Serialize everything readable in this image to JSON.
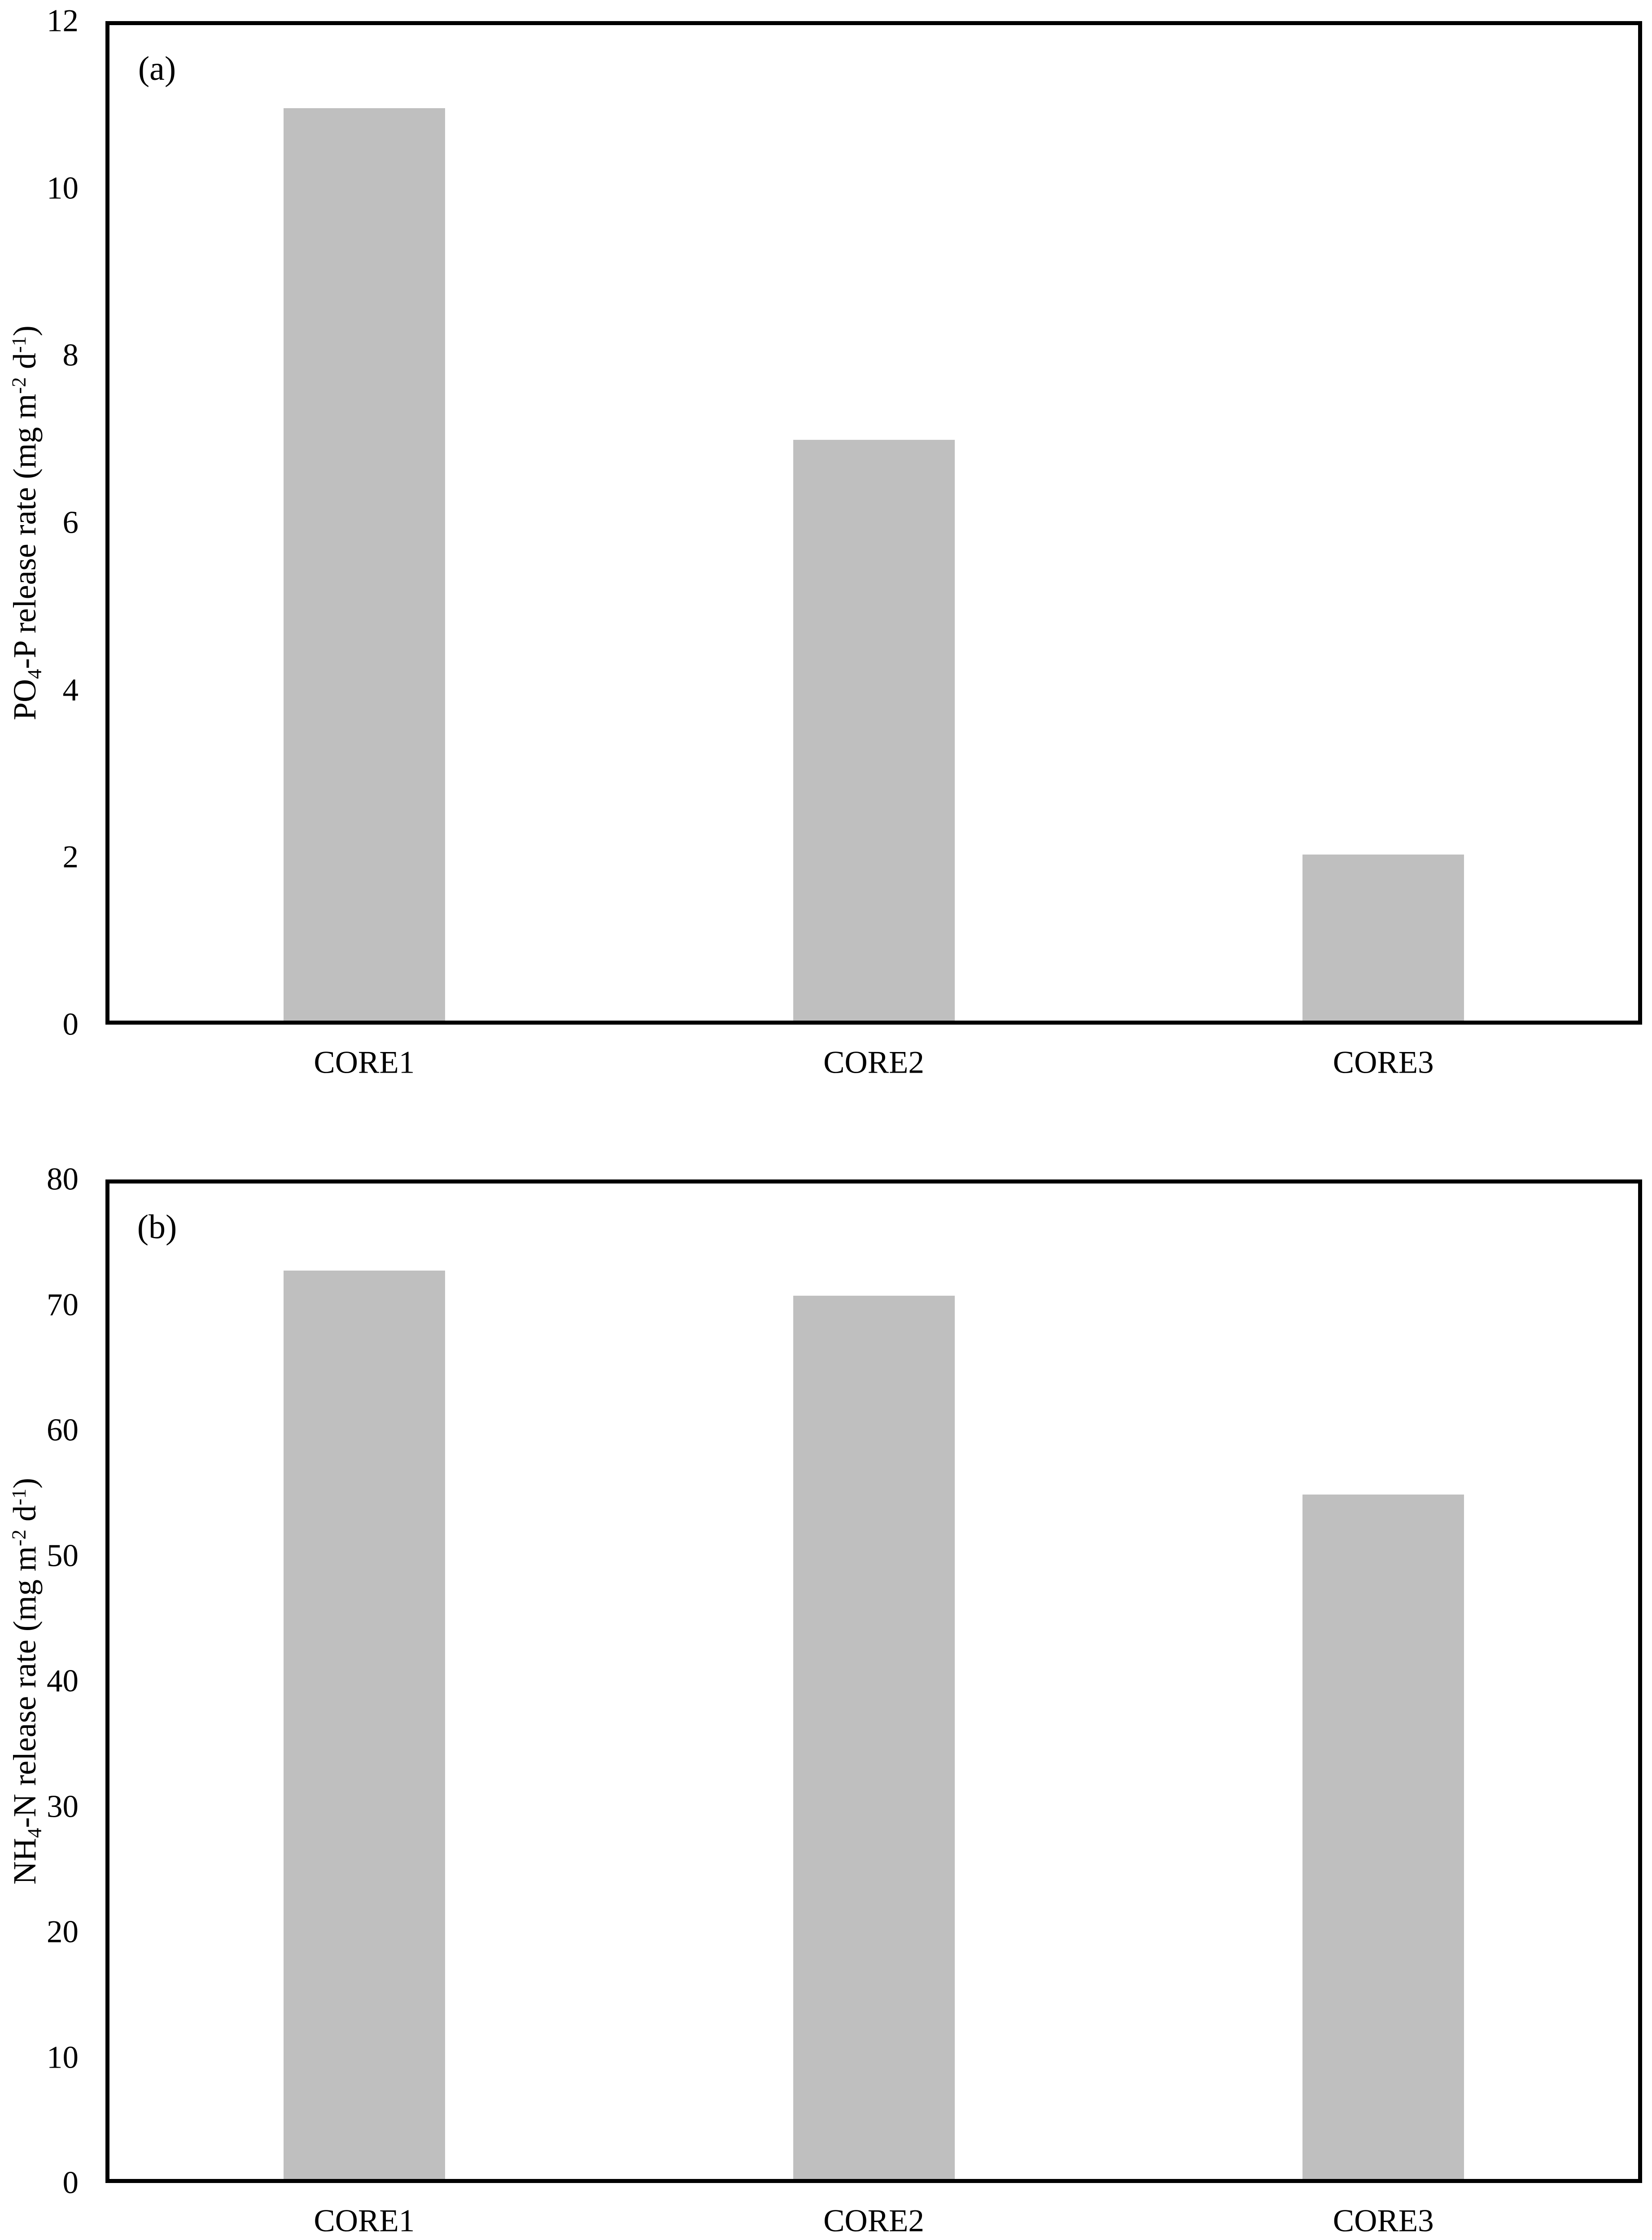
{
  "figure": {
    "background": "#ffffff",
    "axis_color": "#000000",
    "bar_color": "#bfbfbf",
    "text_color": "#000000"
  },
  "chart_data": [
    {
      "type": "bar",
      "panel_label": "(a)",
      "categories": [
        "CORE1",
        "CORE2",
        "CORE3"
      ],
      "values": [
        11,
        7,
        2
      ],
      "title": "",
      "xlabel": "",
      "ylabel": "PO4-P release rate (mg m-2 d-1)",
      "ylabel_rich": [
        {
          "kind": "text",
          "text": "PO"
        },
        {
          "kind": "sub",
          "text": "4"
        },
        {
          "kind": "text",
          "text": "-P release rate (mg m"
        },
        {
          "kind": "sup",
          "text": "-2"
        },
        {
          "kind": "text",
          "text": " d"
        },
        {
          "kind": "sup",
          "text": "-1"
        },
        {
          "kind": "text",
          "text": ")"
        }
      ],
      "ylim": [
        0,
        12
      ],
      "yticks": [
        0,
        2,
        4,
        6,
        8,
        10,
        12
      ],
      "grid": false,
      "legend": null,
      "bar_fill": "#bfbfbf"
    },
    {
      "type": "bar",
      "panel_label": "(b)",
      "categories": [
        "CORE1",
        "CORE2",
        "CORE3"
      ],
      "values": [
        73,
        71,
        55
      ],
      "title": "",
      "xlabel": "",
      "ylabel": "NH4-N release rate (mg m-2 d-1)",
      "ylabel_rich": [
        {
          "kind": "text",
          "text": "NH"
        },
        {
          "kind": "sub",
          "text": "4"
        },
        {
          "kind": "text",
          "text": "-N release rate (mg m"
        },
        {
          "kind": "sup",
          "text": "-2"
        },
        {
          "kind": "text",
          "text": " d"
        },
        {
          "kind": "sup",
          "text": "-1"
        },
        {
          "kind": "text",
          "text": ")"
        }
      ],
      "ylim": [
        0,
        80
      ],
      "yticks": [
        0,
        10,
        20,
        30,
        40,
        50,
        60,
        70,
        80
      ],
      "grid": false,
      "legend": null,
      "bar_fill": "#bfbfbf"
    }
  ]
}
